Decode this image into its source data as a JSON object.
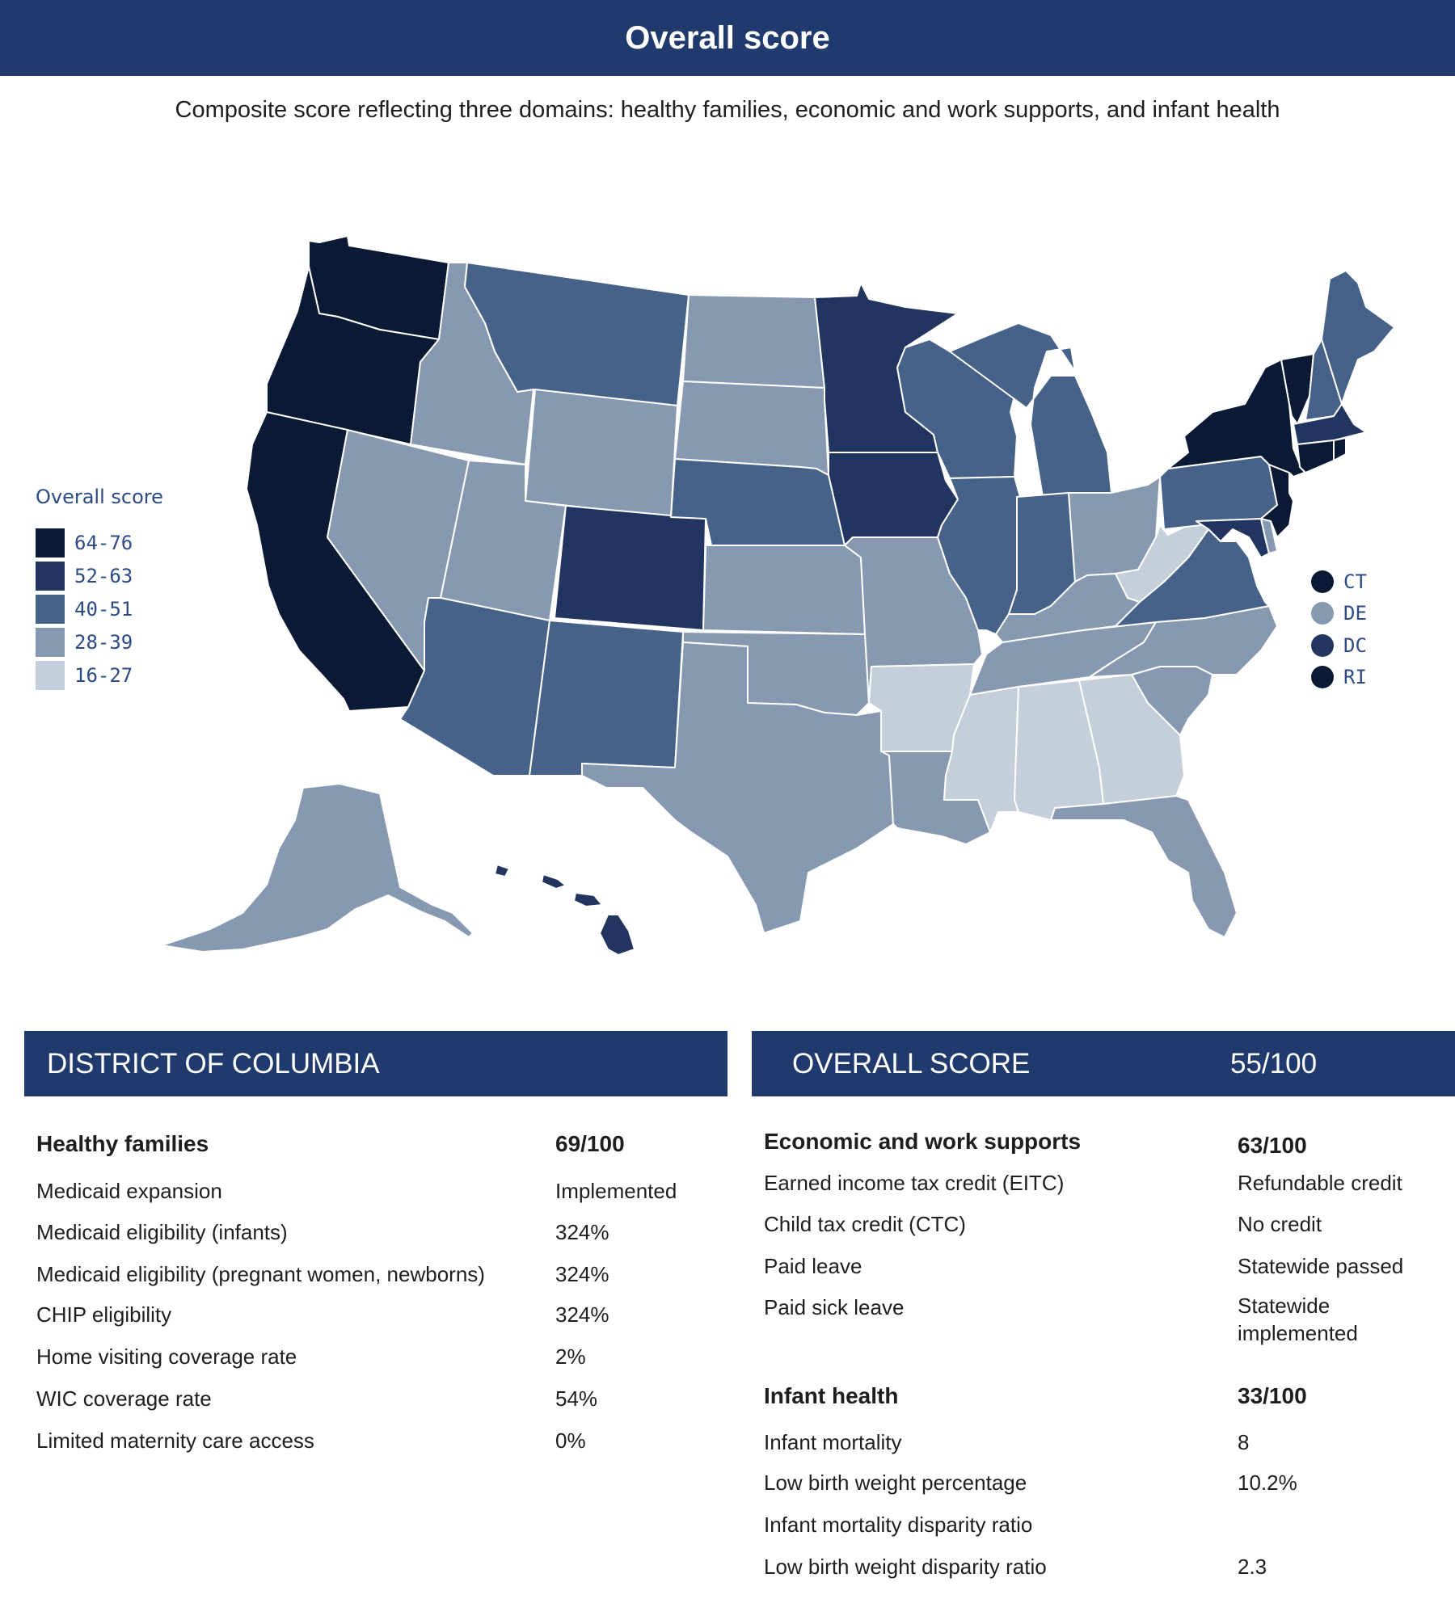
{
  "header": {
    "title": "Overall score",
    "subtitle": "Composite score reflecting three domains: healthy families, economic and work supports, and infant health"
  },
  "legend": {
    "title": "Overall score",
    "items": [
      {
        "label": "64-76",
        "color": "#0b1a34"
      },
      {
        "label": "52-63",
        "color": "#223561"
      },
      {
        "label": "40-51",
        "color": "#466289"
      },
      {
        "label": "28-39",
        "color": "#8699b0"
      },
      {
        "label": "16-27",
        "color": "#c5cedb"
      }
    ]
  },
  "small_states": [
    {
      "label": "CT",
      "color": "#0b1a34"
    },
    {
      "label": "DE",
      "color": "#8699b0"
    },
    {
      "label": "DC",
      "color": "#223561"
    },
    {
      "label": "RI",
      "color": "#0b1a34"
    }
  ],
  "map": {
    "border_color": "#ffffff",
    "state_bins": {
      "WA": "64-76",
      "OR": "64-76",
      "CA": "64-76",
      "NY": "64-76",
      "VT": "64-76",
      "NJ": "64-76",
      "CT": "64-76",
      "RI": "64-76",
      "MN": "52-63",
      "IA": "52-63",
      "CO": "52-63",
      "MA": "52-63",
      "MD": "52-63",
      "HI": "52-63",
      "DC": "52-63",
      "MT": "40-51",
      "NE": "40-51",
      "WI": "40-51",
      "MI": "40-51",
      "IL": "40-51",
      "IN": "40-51",
      "PA": "40-51",
      "VA": "40-51",
      "ME": "40-51",
      "NH": "40-51",
      "AZ": "40-51",
      "NM": "40-51",
      "ID": "28-39",
      "NV": "28-39",
      "UT": "28-39",
      "WY": "28-39",
      "ND": "28-39",
      "SD": "28-39",
      "KS": "28-39",
      "OK": "28-39",
      "TX": "28-39",
      "MO": "28-39",
      "LA": "28-39",
      "KY": "28-39",
      "TN": "28-39",
      "OH": "28-39",
      "NC": "28-39",
      "SC": "28-39",
      "FL": "28-39",
      "AK": "28-39",
      "DE": "28-39",
      "AR": "16-27",
      "MS": "16-27",
      "AL": "16-27",
      "GA": "16-27",
      "WV": "16-27"
    }
  },
  "detail": {
    "state_name": "DISTRICT OF COLUMBIA",
    "overall_label": "OVERALL SCORE",
    "overall_value": "55/100",
    "healthy_families": {
      "title": "Healthy families",
      "score": "69/100",
      "rows": [
        {
          "label": "Medicaid expansion",
          "value": "Implemented"
        },
        {
          "label": "Medicaid eligibility (infants)",
          "value": "324%"
        },
        {
          "label": "Medicaid eligibility (pregnant women, newborns)",
          "value": "324%"
        },
        {
          "label": "CHIP eligibility",
          "value": "324%"
        },
        {
          "label": "Home visiting coverage rate",
          "value": "2%"
        },
        {
          "label": "WIC coverage rate",
          "value": "54%"
        },
        {
          "label": "Limited maternity care access",
          "value": "0%"
        }
      ]
    },
    "economic_work": {
      "title": "Economic and work supports",
      "score": "63/100",
      "rows": [
        {
          "label": "Earned income tax credit (EITC)",
          "value": "Refundable credit"
        },
        {
          "label": "Child tax credit (CTC)",
          "value": "No credit"
        },
        {
          "label": "Paid leave",
          "value": "Statewide passed"
        },
        {
          "label": "Paid sick leave",
          "value": "Statewide implemented"
        }
      ]
    },
    "infant_health": {
      "title": "Infant health",
      "score": "33/100",
      "rows": [
        {
          "label": "Infant mortality",
          "value": "8"
        },
        {
          "label": "Low birth weight percentage",
          "value": "10.2%"
        },
        {
          "label": "Infant mortality disparity ratio",
          "value": ""
        },
        {
          "label": "Low birth weight disparity ratio",
          "value": "2.3"
        }
      ]
    }
  }
}
